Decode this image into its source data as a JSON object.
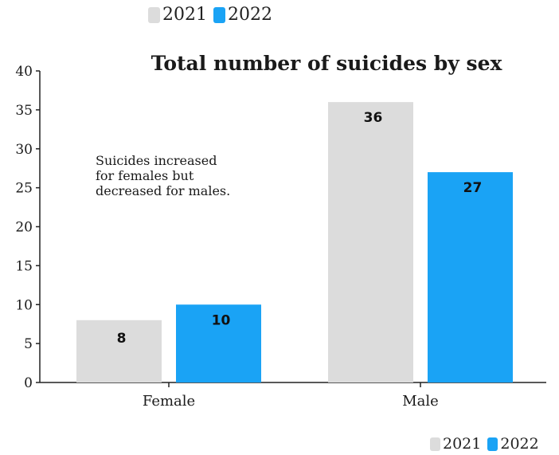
{
  "colors": {
    "y2021": "#dcdcdc",
    "y2022": "#1aa3f5",
    "axis": "#222222",
    "text": "#1a1a1a"
  },
  "legend": {
    "top": [
      {
        "label": "2021",
        "color": "#dcdcdc"
      },
      {
        "label": "2022",
        "color": "#1aa3f5"
      }
    ],
    "bottom": [
      {
        "label": "2021",
        "color": "#dcdcdc"
      },
      {
        "label": "2022",
        "color": "#1aa3f5"
      }
    ]
  },
  "chart_data": {
    "type": "bar",
    "title": "Total number of suicides by sex",
    "annotation": [
      "Suicides increased",
      "for females but",
      "decreased for males."
    ],
    "categories": [
      "Female",
      "Male"
    ],
    "series": [
      {
        "name": "2021",
        "values": [
          8,
          36
        ],
        "color": "#dcdcdc"
      },
      {
        "name": "2022",
        "values": [
          10,
          27
        ],
        "color": "#1aa3f5"
      }
    ],
    "ylim": [
      0,
      40
    ],
    "yticks": [
      0,
      5,
      10,
      15,
      20,
      25,
      30,
      35,
      40
    ],
    "xlabel": "",
    "ylabel": "",
    "legend_position": "top and bottom-right"
  }
}
